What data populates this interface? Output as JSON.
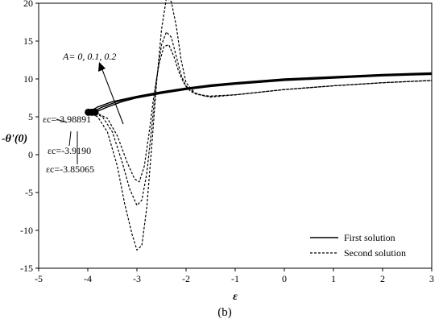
{
  "chart_data": {
    "type": "line",
    "title": "",
    "xlabel": "ε",
    "ylabel": "-θ'(0)",
    "xlim": [
      -5,
      3
    ],
    "ylim": [
      -15,
      20
    ],
    "xticks": [
      -5,
      -4,
      -3,
      -2,
      -1,
      0,
      1,
      2,
      3
    ],
    "yticks": [
      -15,
      -10,
      -5,
      0,
      5,
      10,
      15,
      20
    ],
    "grid": false,
    "legend_position": "bottom-right",
    "legend": [
      {
        "label": "First solution",
        "style": "solid"
      },
      {
        "label": "Second solution",
        "style": "dashed"
      }
    ],
    "series": [
      {
        "group": "First solution",
        "style": "solid",
        "A": "0",
        "x": [
          -3.98891,
          -3.8,
          -3.5,
          -3.0,
          -2.5,
          -2.0,
          -1.5,
          -1.0,
          0.0,
          1.0,
          2.0,
          3.0
        ],
        "y": [
          5.6,
          6.3,
          7.0,
          7.7,
          8.3,
          8.8,
          9.2,
          9.5,
          10.0,
          10.3,
          10.6,
          10.8
        ]
      },
      {
        "group": "First solution",
        "style": "solid",
        "A": "0.1",
        "x": [
          -3.919,
          -3.7,
          -3.4,
          -3.0,
          -2.5,
          -2.0,
          -1.5,
          -1.0,
          0.0,
          1.0,
          2.0,
          3.0
        ],
        "y": [
          5.6,
          6.3,
          7.0,
          7.6,
          8.2,
          8.7,
          9.1,
          9.4,
          9.9,
          10.2,
          10.5,
          10.7
        ]
      },
      {
        "group": "First solution",
        "style": "solid",
        "A": "0.2",
        "x": [
          -3.85065,
          -3.6,
          -3.3,
          -3.0,
          -2.5,
          -2.0,
          -1.5,
          -1.0,
          0.0,
          1.0,
          2.0,
          3.0
        ],
        "y": [
          5.6,
          6.3,
          7.0,
          7.5,
          8.1,
          8.6,
          9.0,
          9.3,
          9.8,
          10.1,
          10.4,
          10.6
        ]
      },
      {
        "group": "Second solution",
        "style": "dashed",
        "A": "0",
        "x": [
          -3.98891,
          -3.8,
          -3.6,
          -3.4,
          -3.25,
          -3.1,
          -3.0,
          -2.9,
          -2.8,
          -2.7,
          -2.6,
          -2.5,
          -2.4,
          -2.3,
          -2.2,
          -2.1,
          -2.0,
          -1.8,
          -1.5,
          -1.0,
          0.0,
          1.0,
          2.0,
          3.0
        ],
        "y": [
          5.6,
          5.0,
          3.0,
          -1.5,
          -6.5,
          -10.5,
          -12.6,
          -12.0,
          -7.0,
          1.0,
          9.5,
          16.5,
          20.7,
          20.2,
          17.0,
          12.5,
          9.5,
          8.0,
          7.6,
          7.9,
          8.6,
          9.1,
          9.5,
          9.8
        ]
      },
      {
        "group": "Second solution",
        "style": "dashed",
        "A": "0.1",
        "x": [
          -3.919,
          -3.7,
          -3.5,
          -3.3,
          -3.15,
          -3.0,
          -2.9,
          -2.8,
          -2.7,
          -2.6,
          -2.5,
          -2.4,
          -2.3,
          -2.2,
          -2.1,
          -2.0,
          -1.8,
          -1.5,
          -1.0,
          0.0,
          1.0,
          2.0,
          3.0
        ],
        "y": [
          5.6,
          5.0,
          3.0,
          -1.0,
          -4.5,
          -6.7,
          -6.0,
          -2.5,
          3.5,
          10.0,
          14.5,
          16.2,
          15.5,
          13.0,
          10.5,
          9.0,
          8.0,
          7.7,
          7.9,
          8.6,
          9.1,
          9.5,
          9.8
        ]
      },
      {
        "group": "Second solution",
        "style": "dashed",
        "A": "0.2",
        "x": [
          -3.85065,
          -3.6,
          -3.4,
          -3.2,
          -3.05,
          -2.95,
          -2.85,
          -2.75,
          -2.65,
          -2.55,
          -2.45,
          -2.35,
          -2.25,
          -2.15,
          -2.05,
          -1.9,
          -1.6,
          -1.0,
          0.0,
          1.0,
          2.0,
          3.0
        ],
        "y": [
          5.6,
          4.8,
          2.5,
          -1.0,
          -3.2,
          -3.6,
          -1.5,
          3.0,
          8.0,
          12.0,
          14.3,
          14.5,
          13.0,
          11.0,
          9.5,
          8.3,
          7.7,
          7.9,
          8.6,
          9.1,
          9.5,
          9.8
        ]
      }
    ],
    "critical_points": [
      {
        "label": "εc=-3.98891",
        "x": -3.98891,
        "y": 5.6
      },
      {
        "label": "εc=-3.9190",
        "x": -3.919,
        "y": 5.6
      },
      {
        "label": "εc=-3.85065",
        "x": -3.85065,
        "y": 5.6
      }
    ],
    "annotation_A": "A= 0, 0.1, 0.2",
    "caption": "(b)"
  }
}
